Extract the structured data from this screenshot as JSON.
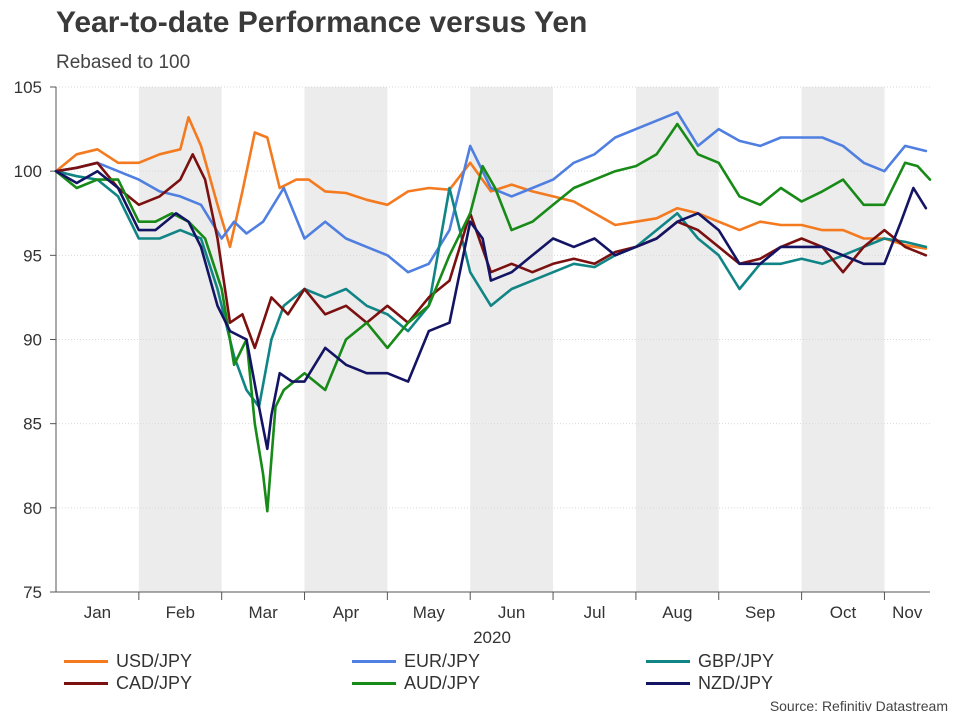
{
  "title": "Year-to-date Performance versus Yen",
  "subtitle": "Rebased to 100",
  "source": "Source: Refinitiv Datastream",
  "chart_data": {
    "type": "line",
    "title": "Year-to-date Performance versus Yen",
    "subtitle": "Rebased to 100",
    "xlabel": "2020",
    "ylabel": "",
    "ylim": [
      75,
      105
    ],
    "yticks": [
      75,
      80,
      85,
      90,
      95,
      100,
      105
    ],
    "xlim": [
      0,
      10.55
    ],
    "months": [
      "Jan",
      "Feb",
      "Mar",
      "Apr",
      "May",
      "Jun",
      "Jul",
      "Aug",
      "Sep",
      "Oct",
      "Nov"
    ],
    "shaded_months": [
      1,
      3,
      5,
      7,
      9
    ],
    "grid": true,
    "legend_position": "bottom",
    "series": [
      {
        "name": "USD/JPY",
        "color": "#F47A20",
        "x": [
          0,
          0.25,
          0.5,
          0.75,
          1.0,
          1.25,
          1.5,
          1.6,
          1.75,
          1.95,
          2.1,
          2.25,
          2.4,
          2.55,
          2.7,
          2.9,
          3.05,
          3.25,
          3.5,
          3.75,
          4.0,
          4.25,
          4.5,
          4.75,
          5.0,
          5.25,
          5.5,
          5.75,
          6.0,
          6.25,
          6.5,
          6.75,
          7.0,
          7.25,
          7.5,
          7.75,
          8.0,
          8.25,
          8.5,
          8.75,
          9.0,
          9.25,
          9.5,
          9.75,
          10.0,
          10.25,
          10.5
        ],
        "y": [
          100,
          101,
          101.3,
          100.5,
          100.5,
          101,
          101.3,
          103.2,
          101.5,
          98,
          95.5,
          98.8,
          102.3,
          102,
          99,
          99.5,
          99.5,
          98.8,
          98.7,
          98.3,
          98,
          98.8,
          99,
          98.9,
          100.5,
          98.8,
          99.2,
          98.8,
          98.5,
          98.2,
          97.5,
          96.8,
          97,
          97.2,
          97.8,
          97.5,
          97,
          96.5,
          97,
          96.8,
          96.8,
          96.5,
          96.5,
          96,
          96,
          95.6,
          95.4
        ]
      },
      {
        "name": "EUR/JPY",
        "color": "#4F7FE0",
        "x": [
          0,
          0.25,
          0.5,
          0.75,
          1.0,
          1.25,
          1.5,
          1.75,
          2.0,
          2.15,
          2.3,
          2.5,
          2.75,
          3.0,
          3.25,
          3.5,
          3.75,
          4.0,
          4.25,
          4.5,
          4.75,
          5.0,
          5.25,
          5.5,
          5.75,
          6.0,
          6.25,
          6.5,
          6.75,
          7.0,
          7.25,
          7.5,
          7.75,
          8.0,
          8.25,
          8.5,
          8.75,
          9.0,
          9.25,
          9.5,
          9.75,
          10.0,
          10.25,
          10.5
        ],
        "y": [
          100,
          100.2,
          100.5,
          100,
          99.5,
          98.8,
          98.5,
          98,
          96,
          97,
          96.3,
          97,
          99,
          96,
          97,
          96,
          95.5,
          95,
          94,
          94.5,
          96.5,
          101.5,
          99,
          98.5,
          99,
          99.5,
          100.5,
          101,
          102,
          102.5,
          103,
          103.5,
          101.5,
          102.5,
          101.8,
          101.5,
          102,
          102,
          102,
          101.5,
          100.5,
          100,
          101.5,
          101.2
        ]
      },
      {
        "name": "GBP/JPY",
        "color": "#118585",
        "x": [
          0,
          0.25,
          0.5,
          0.75,
          1.0,
          1.25,
          1.5,
          1.75,
          1.95,
          2.15,
          2.3,
          2.45,
          2.6,
          2.75,
          3.0,
          3.25,
          3.5,
          3.75,
          4.0,
          4.25,
          4.5,
          4.75,
          5.0,
          5.25,
          5.5,
          5.75,
          6.0,
          6.25,
          6.5,
          6.75,
          7.0,
          7.25,
          7.5,
          7.75,
          8.0,
          8.25,
          8.5,
          8.75,
          9.0,
          9.25,
          9.5,
          9.75,
          10.0,
          10.25,
          10.5
        ],
        "y": [
          100,
          99.7,
          99.5,
          98.5,
          96,
          96,
          96.5,
          96,
          93,
          89,
          87,
          86,
          90,
          92,
          93,
          92.5,
          93,
          92,
          91.5,
          90.5,
          92,
          99,
          94,
          92,
          93,
          93.5,
          94,
          94.5,
          94.3,
          95,
          95.5,
          96.5,
          97.5,
          96,
          95,
          93,
          94.5,
          94.5,
          94.8,
          94.5,
          95,
          95.5,
          96,
          95.8,
          95.5
        ]
      },
      {
        "name": "CAD/JPY",
        "color": "#7B1010",
        "x": [
          0,
          0.25,
          0.5,
          0.75,
          1.0,
          1.25,
          1.5,
          1.65,
          1.8,
          1.95,
          2.1,
          2.25,
          2.4,
          2.6,
          2.8,
          3.0,
          3.25,
          3.5,
          3.75,
          4.0,
          4.25,
          4.5,
          4.75,
          5.0,
          5.25,
          5.5,
          5.75,
          6.0,
          6.25,
          6.5,
          6.75,
          7.0,
          7.25,
          7.5,
          7.75,
          8.0,
          8.25,
          8.5,
          8.75,
          9.0,
          9.25,
          9.5,
          9.75,
          10.0,
          10.25,
          10.5
        ],
        "y": [
          100,
          100.2,
          100.5,
          99,
          98,
          98.5,
          99.5,
          101,
          99.5,
          96,
          91,
          91.5,
          89.5,
          92.5,
          91.5,
          93,
          91.5,
          92,
          91,
          92,
          91,
          92.5,
          93.5,
          97.5,
          94,
          94.5,
          94,
          94.5,
          94.8,
          94.5,
          95.2,
          95.5,
          96,
          97,
          96.5,
          95.5,
          94.5,
          94.8,
          95.5,
          96,
          95.5,
          94,
          95.5,
          96.5,
          95.5,
          95
        ]
      },
      {
        "name": "AUD/JPY",
        "color": "#178A17",
        "x": [
          0,
          0.25,
          0.5,
          0.75,
          1.0,
          1.2,
          1.4,
          1.6,
          1.8,
          2.0,
          2.15,
          2.3,
          2.4,
          2.5,
          2.55,
          2.65,
          2.75,
          3.0,
          3.25,
          3.5,
          3.75,
          4.0,
          4.25,
          4.5,
          4.75,
          5.0,
          5.15,
          5.3,
          5.5,
          5.75,
          6.0,
          6.25,
          6.5,
          6.75,
          7.0,
          7.25,
          7.5,
          7.75,
          8.0,
          8.25,
          8.5,
          8.75,
          9.0,
          9.25,
          9.5,
          9.75,
          10.0,
          10.25,
          10.4,
          10.55
        ],
        "y": [
          100,
          99,
          99.5,
          99.5,
          97,
          97,
          97.5,
          97,
          96,
          93,
          88.5,
          90,
          85,
          82,
          79.8,
          86,
          87,
          88,
          87,
          90,
          91,
          89.5,
          91,
          92,
          95,
          97.5,
          100.3,
          99,
          96.5,
          97,
          98,
          99,
          99.5,
          100,
          100.3,
          101,
          102.8,
          101,
          100.5,
          98.5,
          98,
          99,
          98.2,
          98.8,
          99.5,
          98,
          98,
          100.5,
          100.3,
          99.5
        ]
      },
      {
        "name": "NZD/JPY",
        "color": "#141464",
        "x": [
          0,
          0.25,
          0.5,
          0.75,
          1.0,
          1.2,
          1.45,
          1.6,
          1.75,
          1.95,
          2.1,
          2.3,
          2.45,
          2.55,
          2.6,
          2.7,
          2.85,
          3.0,
          3.25,
          3.5,
          3.75,
          4.0,
          4.25,
          4.5,
          4.75,
          5.0,
          5.15,
          5.25,
          5.5,
          5.75,
          6.0,
          6.25,
          6.5,
          6.75,
          7.0,
          7.25,
          7.5,
          7.75,
          8.0,
          8.25,
          8.5,
          8.75,
          9.0,
          9.25,
          9.5,
          9.75,
          10.0,
          10.2,
          10.35,
          10.5
        ],
        "y": [
          100,
          99.3,
          100,
          99,
          96.5,
          96.5,
          97.5,
          97,
          95.5,
          92,
          90.5,
          90,
          86,
          83.5,
          85.5,
          88,
          87.5,
          87.5,
          89.5,
          88.5,
          88,
          88,
          87.5,
          90.5,
          91,
          97,
          96,
          93.5,
          94,
          95,
          96,
          95.5,
          96,
          95,
          95.5,
          96,
          97,
          97.5,
          96.5,
          94.5,
          94.5,
          95.5,
          95.5,
          95.5,
          95,
          94.5,
          94.5,
          97,
          99,
          97.8
        ]
      }
    ]
  }
}
